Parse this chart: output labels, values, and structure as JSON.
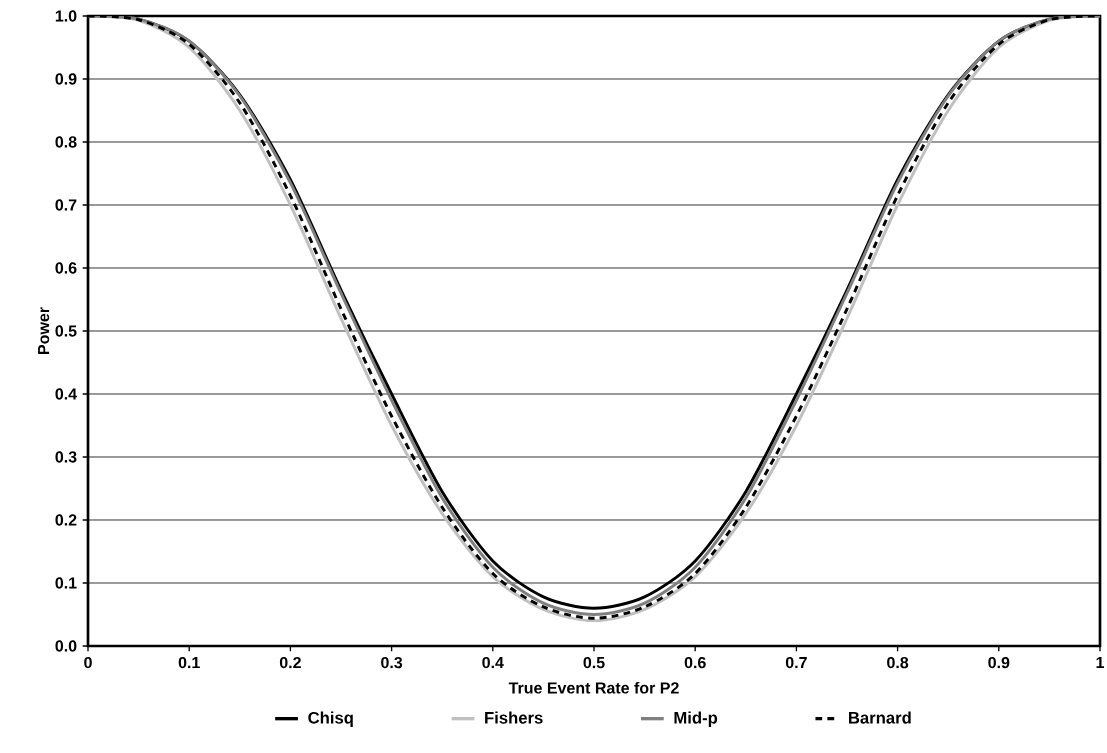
{
  "chart_data": {
    "type": "line",
    "xlabel": "True Event Rate for P2",
    "ylabel": "Power",
    "x": [
      0,
      0.05,
      0.1,
      0.15,
      0.2,
      0.25,
      0.3,
      0.35,
      0.4,
      0.45,
      0.5,
      0.55,
      0.6,
      0.65,
      0.7,
      0.75,
      0.8,
      0.85,
      0.9,
      0.95,
      1
    ],
    "series": [
      {
        "name": "Chisq",
        "color": "#000000",
        "line_style": "solid",
        "values": [
          1.0,
          0.995,
          0.96,
          0.875,
          0.74,
          0.565,
          0.4,
          0.245,
          0.135,
          0.078,
          0.06,
          0.078,
          0.135,
          0.245,
          0.4,
          0.565,
          0.74,
          0.875,
          0.96,
          0.995,
          1.0
        ]
      },
      {
        "name": "Fishers",
        "color": "#c0c0c0",
        "line_style": "solid",
        "values": [
          1.0,
          0.993,
          0.95,
          0.85,
          0.7,
          0.52,
          0.35,
          0.21,
          0.11,
          0.058,
          0.04,
          0.058,
          0.11,
          0.21,
          0.35,
          0.52,
          0.7,
          0.85,
          0.95,
          0.993,
          1.0
        ]
      },
      {
        "name": "Mid-p",
        "color": "#808080",
        "line_style": "solid",
        "values": [
          1.0,
          0.995,
          0.96,
          0.873,
          0.735,
          0.56,
          0.39,
          0.235,
          0.125,
          0.068,
          0.05,
          0.068,
          0.125,
          0.235,
          0.39,
          0.56,
          0.735,
          0.873,
          0.96,
          0.995,
          1.0
        ]
      },
      {
        "name": "Barnard",
        "color": "#000000",
        "line_style": "dashed",
        "values": [
          1.0,
          0.994,
          0.955,
          0.862,
          0.715,
          0.535,
          0.365,
          0.22,
          0.115,
          0.062,
          0.044,
          0.062,
          0.115,
          0.22,
          0.365,
          0.535,
          0.715,
          0.862,
          0.955,
          0.994,
          1.0
        ]
      }
    ],
    "xlim": [
      0,
      1
    ],
    "ylim": [
      0,
      1
    ],
    "xticks": [
      0,
      {
        "value": 0.1,
        "label": "0.1"
      },
      {
        "value": 0.2,
        "label": "0.2"
      },
      {
        "value": 0.3,
        "label": "0.3"
      },
      {
        "value": 0.4,
        "label": "0.4"
      },
      {
        "value": 0.5,
        "label": "0.5"
      },
      {
        "value": 0.6,
        "label": "0.6"
      },
      {
        "value": 0.7,
        "label": "0.7"
      },
      {
        "value": 0.8,
        "label": "0.8"
      },
      {
        "value": 0.9,
        "label": "0.9"
      },
      1
    ],
    "yticks": [
      {
        "value": 0,
        "label": "0.0"
      },
      {
        "value": 0.1,
        "label": "0.1"
      },
      {
        "value": 0.2,
        "label": "0.2"
      },
      {
        "value": 0.3,
        "label": "0.3"
      },
      {
        "value": 0.4,
        "label": "0.4"
      },
      {
        "value": 0.5,
        "label": "0.5"
      },
      {
        "value": 0.6,
        "label": "0.6"
      },
      {
        "value": 0.7,
        "label": "0.7"
      },
      {
        "value": 0.8,
        "label": "0.8"
      },
      {
        "value": 0.9,
        "label": "0.9"
      },
      {
        "value": 1,
        "label": "1.0"
      }
    ],
    "grid": "y",
    "legend": "bottom",
    "marker": "none"
  }
}
